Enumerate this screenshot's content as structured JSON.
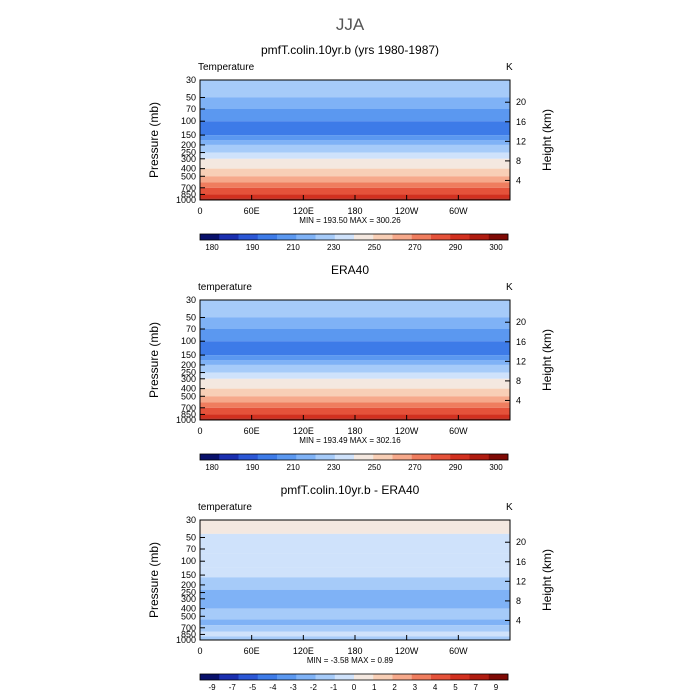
{
  "figure": {
    "season": "JJA"
  },
  "chart_data": [
    {
      "type": "heatmap",
      "title": "pmfT.colin.10yr.b (yrs 1980-1987)",
      "left_label": "Temperature",
      "units": "K",
      "ylabel": "Pressure (mb)",
      "ylabel_right": "Height (km)",
      "x_ticks": [
        "0",
        "60E",
        "120E",
        "180",
        "120W",
        "60W"
      ],
      "y_ticks": [
        "30",
        "50",
        "70",
        "100",
        "150",
        "200",
        "250",
        "300",
        "400",
        "500",
        "700",
        "850",
        "1000"
      ],
      "y_ticks_right": [
        "20",
        "16",
        "12",
        "8",
        "4"
      ],
      "stats": {
        "min": "193.50",
        "max": "300.26"
      },
      "stats_text": "MIN = 193.50   MAX = 300.26",
      "colorbar_labels": [
        "180",
        "190",
        "210",
        "230",
        "250",
        "270",
        "290",
        "300"
      ],
      "colorbar_colors": [
        "#08106b",
        "#1a2fb0",
        "#2b57d6",
        "#3d7be8",
        "#5b98f0",
        "#7fb2f6",
        "#a6cbf9",
        "#cfe2fb",
        "#f4e8e0",
        "#f8cfb6",
        "#f6a98b",
        "#ef7d5e",
        "#e5523a",
        "#d2301f",
        "#b01c10",
        "#7f0a05"
      ],
      "bands": [
        {
          "p": 30,
          "c": 6
        },
        {
          "p": 50,
          "c": 5
        },
        {
          "p": 70,
          "c": 4
        },
        {
          "p": 100,
          "c": 3
        },
        {
          "p": 150,
          "c": 4
        },
        {
          "p": 175,
          "c": 5
        },
        {
          "p": 200,
          "c": 6
        },
        {
          "p": 250,
          "c": 7
        },
        {
          "p": 300,
          "c": 8
        },
        {
          "p": 400,
          "c": 9
        },
        {
          "p": 500,
          "c": 10
        },
        {
          "p": 600,
          "c": 11
        },
        {
          "p": 700,
          "c": 12
        },
        {
          "p": 850,
          "c": 13
        },
        {
          "p": 950,
          "c": 14
        }
      ]
    },
    {
      "type": "heatmap",
      "title": "ERA40",
      "left_label": "temperature",
      "units": "K",
      "ylabel": "Pressure (mb)",
      "ylabel_right": "Height (km)",
      "x_ticks": [
        "0",
        "60E",
        "120E",
        "180",
        "120W",
        "60W"
      ],
      "y_ticks": [
        "30",
        "50",
        "70",
        "100",
        "150",
        "200",
        "250",
        "300",
        "400",
        "500",
        "700",
        "850",
        "1000"
      ],
      "y_ticks_right": [
        "20",
        "16",
        "12",
        "8",
        "4"
      ],
      "stats": {
        "min": "193.49",
        "max": "302.16"
      },
      "stats_text": "MIN = 193.49   MAX = 302.16",
      "colorbar_labels": [
        "180",
        "190",
        "210",
        "230",
        "250",
        "270",
        "290",
        "300"
      ],
      "colorbar_colors": [
        "#08106b",
        "#1a2fb0",
        "#2b57d6",
        "#3d7be8",
        "#5b98f0",
        "#7fb2f6",
        "#a6cbf9",
        "#cfe2fb",
        "#f4e8e0",
        "#f8cfb6",
        "#f6a98b",
        "#ef7d5e",
        "#e5523a",
        "#d2301f",
        "#b01c10",
        "#7f0a05"
      ],
      "bands": [
        {
          "p": 30,
          "c": 6
        },
        {
          "p": 50,
          "c": 5
        },
        {
          "p": 70,
          "c": 4
        },
        {
          "p": 100,
          "c": 3
        },
        {
          "p": 150,
          "c": 4
        },
        {
          "p": 175,
          "c": 5
        },
        {
          "p": 200,
          "c": 6
        },
        {
          "p": 250,
          "c": 7
        },
        {
          "p": 300,
          "c": 8
        },
        {
          "p": 400,
          "c": 9
        },
        {
          "p": 500,
          "c": 10
        },
        {
          "p": 600,
          "c": 11
        },
        {
          "p": 700,
          "c": 12
        },
        {
          "p": 850,
          "c": 13
        },
        {
          "p": 950,
          "c": 14
        }
      ]
    },
    {
      "type": "heatmap",
      "title": "pmfT.colin.10yr.b - ERA40",
      "left_label": "temperature",
      "units": "K",
      "ylabel": "Pressure (mb)",
      "ylabel_right": "Height (km)",
      "x_ticks": [
        "0",
        "60E",
        "120E",
        "180",
        "120W",
        "60W"
      ],
      "y_ticks": [
        "30",
        "50",
        "70",
        "100",
        "150",
        "200",
        "250",
        "300",
        "400",
        "500",
        "700",
        "850",
        "1000"
      ],
      "y_ticks_right": [
        "20",
        "16",
        "12",
        "8",
        "4"
      ],
      "stats": {
        "min": "-3.58",
        "max": "0.89"
      },
      "stats_text": "MIN =   -3.58   MAX =    0.89",
      "colorbar_labels": [
        "-9",
        "-7",
        "-5",
        "-4",
        "-3",
        "-2",
        "-1",
        "0",
        "1",
        "2",
        "3",
        "4",
        "5",
        "7",
        "9"
      ],
      "colorbar_colors": [
        "#08106b",
        "#1a2fb0",
        "#2b57d6",
        "#3d7be8",
        "#5b98f0",
        "#7fb2f6",
        "#a6cbf9",
        "#cfe2fb",
        "#f4e8e0",
        "#f8cfb6",
        "#f6a98b",
        "#ef7d5e",
        "#e5523a",
        "#d2301f",
        "#b01c10",
        "#7f0a05"
      ],
      "bands": [
        {
          "p": 30,
          "c": 8
        },
        {
          "p": 45,
          "c": 7
        },
        {
          "p": 80,
          "c": 7
        },
        {
          "p": 120,
          "c": 7
        },
        {
          "p": 160,
          "c": 6
        },
        {
          "p": 230,
          "c": 5
        },
        {
          "p": 400,
          "c": 6
        },
        {
          "p": 550,
          "c": 5
        },
        {
          "p": 650,
          "c": 6
        },
        {
          "p": 780,
          "c": 7
        },
        {
          "p": 900,
          "c": 6
        }
      ]
    }
  ]
}
